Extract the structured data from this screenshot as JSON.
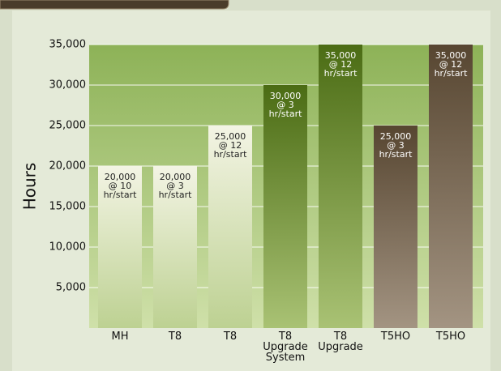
{
  "chart_data": {
    "type": "bar",
    "y_label": "Hours",
    "categories": [
      "MH",
      "T8",
      "T8",
      "T8\nUpgrade\nSystem",
      "T8\nUpgrade",
      "T5HO",
      "T5HO"
    ],
    "values": [
      20000,
      20000,
      25000,
      30000,
      35000,
      25000,
      35000
    ],
    "value_labels": [
      "20,000\n@ 10\nhr/start",
      "20,000\n@ 3\nhr/start",
      "25,000\n@ 12\nhr/start",
      "30,000\n@ 3\nhr/start",
      "35,000\n@ 12\nhr/start",
      "25,000\n@ 3\nhr/start",
      "35,000\n@ 12\nhr/start"
    ],
    "colors": [
      [
        "#f3f4e4",
        "#bdd192"
      ],
      [
        "#f3f4e4",
        "#bdd192"
      ],
      [
        "#f3f4e4",
        "#bdd192"
      ],
      [
        "#4b6c14",
        "#a9c274"
      ],
      [
        "#4b6c14",
        "#a9c274"
      ],
      [
        "#574631",
        "#a39482"
      ],
      [
        "#574631",
        "#a39482"
      ]
    ],
    "ylim": [
      0,
      35000
    ],
    "yticks": [
      {
        "value": 5000,
        "label": "5,000"
      },
      {
        "value": 10000,
        "label": "10,000"
      },
      {
        "value": 15000,
        "label": "15,000"
      },
      {
        "value": 20000,
        "label": "20,000"
      },
      {
        "value": 25000,
        "label": "25,000"
      },
      {
        "value": 30000,
        "label": "30,000"
      },
      {
        "value": 35000,
        "label": "35,000"
      }
    ],
    "grid": true
  }
}
